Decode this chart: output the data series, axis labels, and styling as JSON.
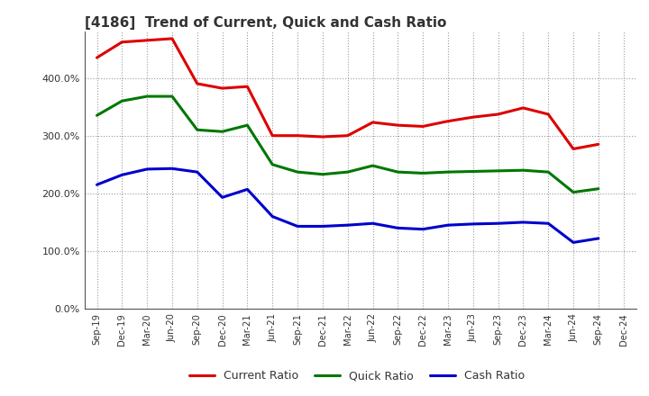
{
  "title": "[4186]  Trend of Current, Quick and Cash Ratio",
  "x_labels": [
    "Sep-19",
    "Dec-19",
    "Mar-20",
    "Jun-20",
    "Sep-20",
    "Dec-20",
    "Mar-21",
    "Jun-21",
    "Sep-21",
    "Dec-21",
    "Mar-22",
    "Jun-22",
    "Sep-22",
    "Dec-22",
    "Mar-23",
    "Jun-23",
    "Sep-23",
    "Dec-23",
    "Mar-24",
    "Jun-24",
    "Sep-24",
    "Dec-24"
  ],
  "current_ratio": [
    435,
    462,
    465,
    468,
    390,
    382,
    385,
    300,
    300,
    298,
    300,
    323,
    318,
    316,
    325,
    332,
    337,
    348,
    337,
    277,
    285,
    null
  ],
  "quick_ratio": [
    335,
    360,
    368,
    368,
    310,
    307,
    318,
    250,
    237,
    233,
    237,
    248,
    237,
    235,
    237,
    238,
    239,
    240,
    237,
    202,
    208,
    null
  ],
  "cash_ratio": [
    215,
    232,
    242,
    243,
    237,
    193,
    207,
    160,
    143,
    143,
    145,
    148,
    140,
    138,
    145,
    147,
    148,
    150,
    148,
    115,
    122,
    null
  ],
  "ylim": [
    0,
    480
  ],
  "yticks": [
    0,
    100,
    200,
    300,
    400
  ],
  "current_color": "#dd0000",
  "quick_color": "#007700",
  "cash_color": "#0000cc",
  "background_color": "#ffffff",
  "grid_color": "#999999",
  "legend_labels": [
    "Current Ratio",
    "Quick Ratio",
    "Cash Ratio"
  ],
  "linewidth": 2.2
}
